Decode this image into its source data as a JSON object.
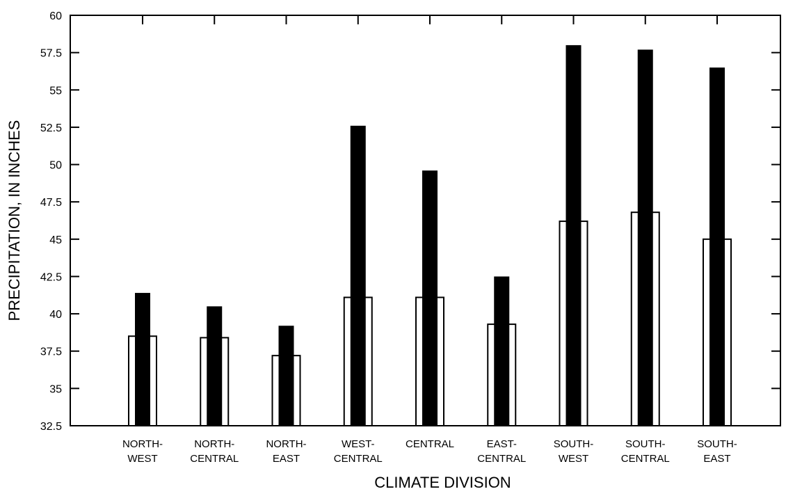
{
  "chart_data": {
    "type": "bar",
    "xlabel": "CLIMATE DIVISION",
    "ylabel": "PRECIPITATION, IN INCHES",
    "ylim": [
      32.5,
      60
    ],
    "yticks": [
      32.5,
      35,
      37.5,
      40,
      42.5,
      45,
      47.5,
      50,
      52.5,
      55,
      57.5,
      60
    ],
    "ytick_labels": [
      "32.5",
      "35",
      "37.5",
      "40",
      "42.5",
      "45",
      "47.5",
      "50",
      "52.5",
      "55",
      "57.5",
      "60"
    ],
    "categories": [
      [
        "NORTH-",
        "WEST"
      ],
      [
        "NORTH-",
        "CENTRAL"
      ],
      [
        "NORTH-",
        "EAST"
      ],
      [
        "WEST-",
        "CENTRAL"
      ],
      [
        "CENTRAL"
      ],
      [
        "EAST-",
        "CENTRAL"
      ],
      [
        "SOUTH-",
        "WEST"
      ],
      [
        "SOUTH-",
        "CENTRAL"
      ],
      [
        "SOUTH-",
        "EAST"
      ]
    ],
    "series": [
      {
        "style": "open",
        "values": [
          38.5,
          38.4,
          37.2,
          41.1,
          41.1,
          39.3,
          46.2,
          46.8,
          45.0
        ]
      },
      {
        "style": "filled",
        "values": [
          41.4,
          40.5,
          39.2,
          52.6,
          49.6,
          42.5,
          58.0,
          57.7,
          56.5
        ]
      }
    ],
    "colors": {
      "open_fill": "#ffffff",
      "filled": "#000000",
      "axis": "#000000"
    },
    "grid": false
  }
}
